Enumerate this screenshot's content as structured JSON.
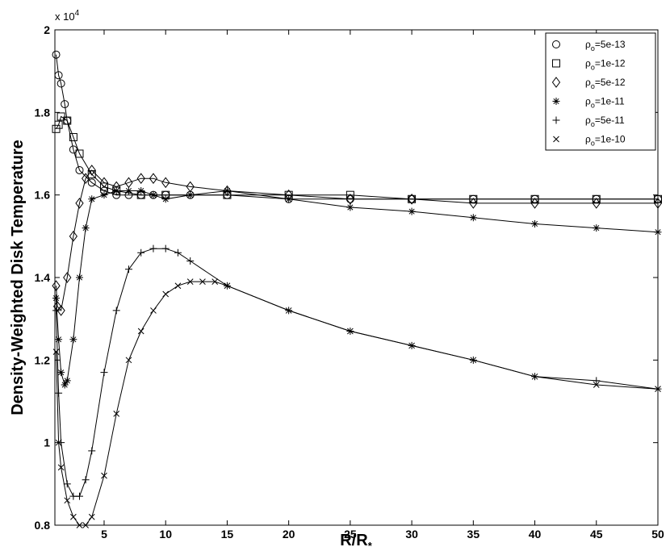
{
  "chart_data": {
    "type": "line",
    "xlabel": "R/R*",
    "ylabel": "Density-Weighted Disk Temperature",
    "y_multiplier": "x 10^4",
    "xlim": [
      1,
      50
    ],
    "ylim": [
      0.8,
      2.0
    ],
    "x_ticks": [
      5,
      10,
      15,
      20,
      25,
      30,
      35,
      40,
      45,
      50
    ],
    "y_ticks": [
      0.8,
      1,
      1.2,
      1.4,
      1.6,
      1.8,
      2
    ],
    "grid": false,
    "legend_position": "top-right",
    "series": [
      {
        "name": "ρo=5e-13",
        "marker": "circle",
        "x": [
          1.1,
          1.3,
          1.5,
          1.8,
          2,
          2.5,
          3,
          4,
          5,
          6,
          7,
          8,
          9,
          10,
          12,
          15,
          20,
          25,
          30,
          35,
          40,
          45,
          50
        ],
        "y": [
          1.94,
          1.89,
          1.87,
          1.82,
          1.78,
          1.71,
          1.66,
          1.63,
          1.61,
          1.6,
          1.6,
          1.6,
          1.6,
          1.6,
          1.6,
          1.6,
          1.59,
          1.59,
          1.59,
          1.59,
          1.59,
          1.59,
          1.59
        ]
      },
      {
        "name": "ρo=1e-12",
        "marker": "square",
        "x": [
          1.1,
          1.3,
          1.5,
          2,
          2.5,
          3,
          4,
          5,
          6,
          8,
          10,
          15,
          20,
          25,
          30,
          35,
          40,
          45,
          50
        ],
        "y": [
          1.76,
          1.77,
          1.79,
          1.78,
          1.74,
          1.7,
          1.65,
          1.62,
          1.61,
          1.6,
          1.6,
          1.6,
          1.6,
          1.6,
          1.59,
          1.59,
          1.59,
          1.59,
          1.59
        ]
      },
      {
        "name": "ρo=5e-12",
        "marker": "diamond",
        "x": [
          1.1,
          1.2,
          1.5,
          2,
          2.5,
          3,
          3.5,
          4,
          5,
          6,
          7,
          8,
          9,
          10,
          12,
          15,
          20,
          25,
          30,
          35,
          40,
          45,
          50
        ],
        "y": [
          1.38,
          1.33,
          1.32,
          1.4,
          1.5,
          1.58,
          1.64,
          1.66,
          1.63,
          1.62,
          1.63,
          1.64,
          1.64,
          1.63,
          1.62,
          1.61,
          1.6,
          1.59,
          1.59,
          1.58,
          1.58,
          1.58,
          1.58
        ]
      },
      {
        "name": "ρo=1e-11",
        "marker": "star",
        "x": [
          1.1,
          1.3,
          1.5,
          1.8,
          2,
          2.5,
          3,
          3.5,
          4,
          5,
          6,
          7,
          8,
          9,
          10,
          12,
          15,
          20,
          25,
          30,
          35,
          40,
          45,
          50
        ],
        "y": [
          1.35,
          1.25,
          1.17,
          1.14,
          1.15,
          1.25,
          1.4,
          1.52,
          1.59,
          1.6,
          1.61,
          1.61,
          1.61,
          1.6,
          1.59,
          1.6,
          1.61,
          1.59,
          1.57,
          1.56,
          1.545,
          1.53,
          1.52,
          1.51
        ]
      },
      {
        "name": "ρo=5e-11",
        "marker": "plus",
        "x": [
          1.1,
          1.3,
          1.5,
          2,
          2.5,
          3,
          3.5,
          4,
          5,
          6,
          7,
          8,
          9,
          10,
          11,
          12,
          15,
          20,
          25,
          30,
          35,
          40,
          45,
          50
        ],
        "y": [
          1.32,
          1.12,
          1.0,
          0.9,
          0.87,
          0.87,
          0.91,
          0.98,
          1.17,
          1.32,
          1.42,
          1.46,
          1.47,
          1.47,
          1.46,
          1.44,
          1.38,
          1.32,
          1.27,
          1.235,
          1.2,
          1.16,
          1.15,
          1.13
        ]
      },
      {
        "name": "ρo=1e-10",
        "marker": "x",
        "x": [
          1.1,
          1.3,
          1.5,
          2,
          2.5,
          3,
          3.5,
          4,
          5,
          6,
          7,
          8,
          9,
          10,
          11,
          12,
          13,
          14,
          15,
          20,
          25,
          30,
          35,
          40,
          45,
          50
        ],
        "y": [
          1.22,
          1.0,
          0.94,
          0.86,
          0.82,
          0.8,
          0.8,
          0.82,
          0.92,
          1.07,
          1.2,
          1.27,
          1.32,
          1.36,
          1.38,
          1.39,
          1.39,
          1.39,
          1.38,
          1.32,
          1.27,
          1.235,
          1.2,
          1.16,
          1.14,
          1.13
        ]
      }
    ]
  }
}
